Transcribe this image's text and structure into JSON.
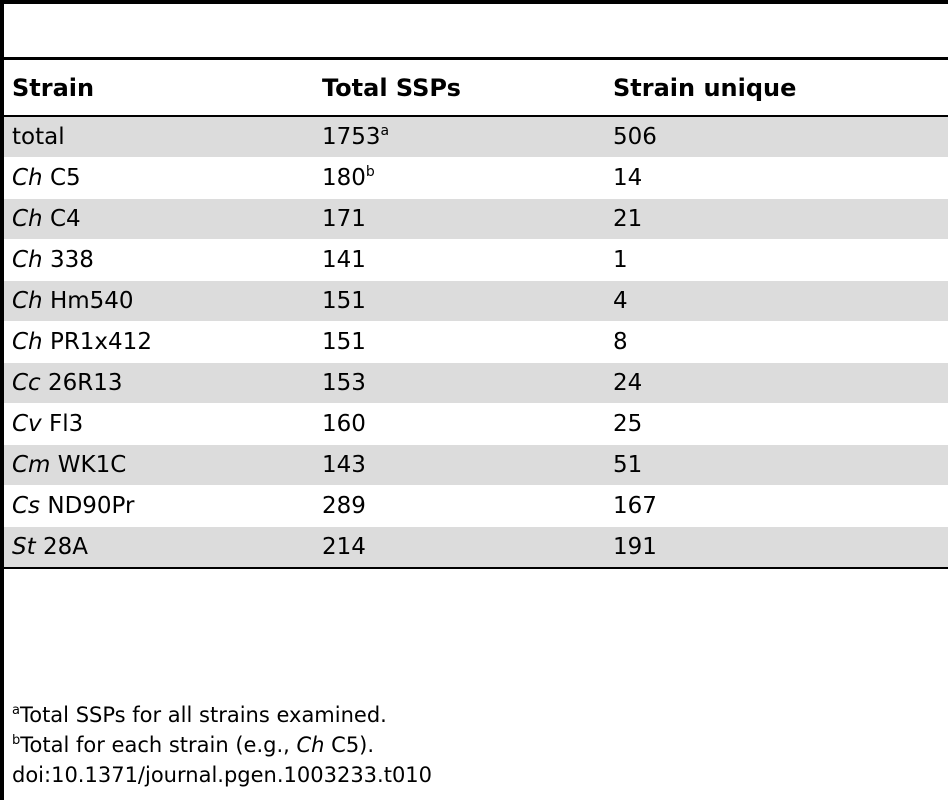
{
  "table": {
    "headers": [
      "Strain",
      "Total SSPs",
      "Strain unique"
    ],
    "rows": [
      {
        "genus": "",
        "strain": "total",
        "total": "1753",
        "total_note": "a",
        "unique": "506"
      },
      {
        "genus": "Ch",
        "strain": "C5",
        "total": "180",
        "total_note": "b",
        "unique": "14"
      },
      {
        "genus": "Ch",
        "strain": "C4",
        "total": "171",
        "total_note": "",
        "unique": "21"
      },
      {
        "genus": "Ch",
        "strain": "338",
        "total": "141",
        "total_note": "",
        "unique": "1"
      },
      {
        "genus": "Ch",
        "strain": "Hm540",
        "total": "151",
        "total_note": "",
        "unique": "4"
      },
      {
        "genus": "Ch",
        "strain": "PR1x412",
        "total": "151",
        "total_note": "",
        "unique": "8"
      },
      {
        "genus": "Cc",
        "strain": "26R13",
        "total": "153",
        "total_note": "",
        "unique": "24"
      },
      {
        "genus": "Cv",
        "strain": "Fl3",
        "total": "160",
        "total_note": "",
        "unique": "25"
      },
      {
        "genus": "Cm",
        "strain": "WK1C",
        "total": "143",
        "total_note": "",
        "unique": "51"
      },
      {
        "genus": "Cs",
        "strain": "ND90Pr",
        "total": "289",
        "total_note": "",
        "unique": "167"
      },
      {
        "genus": "St",
        "strain": "28A",
        "total": "214",
        "total_note": "",
        "unique": "191"
      }
    ]
  },
  "footnotes": {
    "a": {
      "marker": "a",
      "text": "Total SSPs for all strains examined."
    },
    "b": {
      "marker": "b",
      "text_before": "Total for each strain (e.g., ",
      "genus": "Ch",
      "text_after": " C5)."
    },
    "doi": "doi:10.1371/journal.pgen.1003233.t010"
  }
}
